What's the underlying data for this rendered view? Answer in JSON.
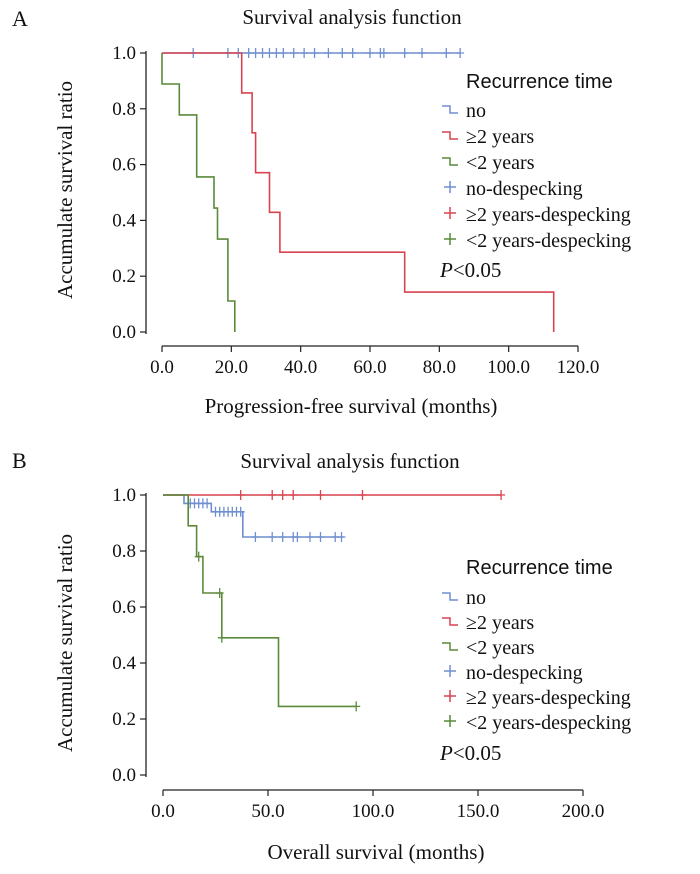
{
  "chart_data": [
    {
      "panel": "A",
      "type": "line",
      "step": true,
      "title": "Survival analysis function",
      "xlabel": "Progression-free survival (months)",
      "ylabel": "Accumulate survival ratio",
      "xlim": [
        0,
        120
      ],
      "ylim": [
        0,
        1
      ],
      "xticks": [
        "0.0",
        "20.0",
        "40.0",
        "60.0",
        "80.0",
        "100.0",
        "120.0"
      ],
      "yticks": [
        "0.0",
        "0.2",
        "0.4",
        "0.6",
        "0.8",
        "1.0"
      ],
      "legend_title": "Recurrence time",
      "legend": [
        "no",
        "≥2 years",
        "<2 years",
        "no-despecking",
        "≥2 years-despecking",
        "<2 years-despecking"
      ],
      "annotation": "P<0.05",
      "series": [
        {
          "name": "no",
          "color": "#6f8fd0",
          "steps": [
            [
              0,
              1.0
            ],
            [
              86,
              1.0
            ]
          ],
          "censored": [
            [
              9,
              1.0
            ],
            [
              19,
              1.0
            ],
            [
              22,
              1.0
            ],
            [
              25,
              1.0
            ],
            [
              27,
              1.0
            ],
            [
              29,
              1.0
            ],
            [
              31,
              1.0
            ],
            [
              33,
              1.0
            ],
            [
              35,
              1.0
            ],
            [
              38,
              1.0
            ],
            [
              41,
              1.0
            ],
            [
              44,
              1.0
            ],
            [
              48,
              1.0
            ],
            [
              52,
              1.0
            ],
            [
              55,
              1.0
            ],
            [
              60,
              1.0
            ],
            [
              63,
              1.0
            ],
            [
              64,
              1.0
            ],
            [
              70,
              1.0
            ],
            [
              75,
              1.0
            ],
            [
              82,
              1.0
            ],
            [
              86,
              1.0
            ]
          ]
        },
        {
          "name": "≥2 years",
          "color": "#d9434f",
          "steps": [
            [
              0,
              1.0
            ],
            [
              23,
              1.0
            ],
            [
              23,
              0.857
            ],
            [
              26,
              0.857
            ],
            [
              26,
              0.714
            ],
            [
              27,
              0.714
            ],
            [
              27,
              0.571
            ],
            [
              31,
              0.571
            ],
            [
              31,
              0.429
            ],
            [
              34,
              0.429
            ],
            [
              34,
              0.286
            ],
            [
              70,
              0.286
            ],
            [
              70,
              0.143
            ],
            [
              113,
              0.143
            ],
            [
              113,
              0.0
            ]
          ],
          "censored": []
        },
        {
          "name": "<2 years",
          "color": "#5a8a3a",
          "steps": [
            [
              0,
              1.0
            ],
            [
              0,
              0.889
            ],
            [
              5,
              0.889
            ],
            [
              5,
              0.778
            ],
            [
              10,
              0.778
            ],
            [
              10,
              0.556
            ],
            [
              15,
              0.556
            ],
            [
              15,
              0.444
            ],
            [
              16,
              0.444
            ],
            [
              16,
              0.333
            ],
            [
              19,
              0.333
            ],
            [
              19,
              0.111
            ],
            [
              21,
              0.111
            ],
            [
              21,
              0.0
            ]
          ],
          "censored": []
        }
      ]
    },
    {
      "panel": "B",
      "type": "line",
      "step": true,
      "title": "Survival analysis function",
      "xlabel": "Overall survival (months)",
      "ylabel": "Accumulate survival ratio",
      "xlim": [
        0,
        200
      ],
      "ylim": [
        0,
        1
      ],
      "xticks": [
        "0.0",
        "50.0",
        "100.0",
        "150.0",
        "200.0"
      ],
      "yticks": [
        "0.0",
        "0.2",
        "0.4",
        "0.6",
        "0.8",
        "1.0"
      ],
      "legend_title": "Recurrence time",
      "legend": [
        "no",
        "≥2 years",
        "<2 years",
        "no-despecking",
        "≥2 years-despecking",
        "<2 years-despecking"
      ],
      "annotation": "P<0.05",
      "series": [
        {
          "name": "no",
          "color": "#6f8fd0",
          "steps": [
            [
              0,
              1.0
            ],
            [
              10,
              1.0
            ],
            [
              10,
              0.97
            ],
            [
              23,
              0.97
            ],
            [
              23,
              0.94
            ],
            [
              38,
              0.94
            ],
            [
              38,
              0.85
            ],
            [
              86,
              0.85
            ]
          ],
          "censored": [
            [
              13,
              0.97
            ],
            [
              15,
              0.97
            ],
            [
              17,
              0.97
            ],
            [
              19,
              0.97
            ],
            [
              21,
              0.97
            ],
            [
              25,
              0.94
            ],
            [
              27,
              0.94
            ],
            [
              29,
              0.94
            ],
            [
              31,
              0.94
            ],
            [
              33,
              0.94
            ],
            [
              35,
              0.94
            ],
            [
              37,
              0.94
            ],
            [
              44,
              0.85
            ],
            [
              52,
              0.85
            ],
            [
              57,
              0.85
            ],
            [
              62,
              0.85
            ],
            [
              64,
              0.85
            ],
            [
              70,
              0.85
            ],
            [
              75,
              0.85
            ],
            [
              82,
              0.85
            ],
            [
              85,
              0.85
            ]
          ]
        },
        {
          "name": "≥2 years",
          "color": "#d9434f",
          "steps": [
            [
              0,
              1.0
            ],
            [
              161,
              1.0
            ]
          ],
          "censored": [
            [
              37,
              1.0
            ],
            [
              52,
              1.0
            ],
            [
              57,
              1.0
            ],
            [
              62,
              1.0
            ],
            [
              75,
              1.0
            ],
            [
              95,
              1.0
            ],
            [
              161,
              1.0
            ]
          ]
        },
        {
          "name": "<2 years",
          "color": "#5a8a3a",
          "steps": [
            [
              0,
              1.0
            ],
            [
              12,
              1.0
            ],
            [
              12,
              0.89
            ],
            [
              16,
              0.89
            ],
            [
              16,
              0.78
            ],
            [
              19,
              0.78
            ],
            [
              19,
              0.65
            ],
            [
              28,
              0.65
            ],
            [
              28,
              0.49
            ],
            [
              55,
              0.49
            ],
            [
              55,
              0.245
            ],
            [
              92,
              0.245
            ]
          ],
          "censored": [
            [
              17,
              0.78
            ],
            [
              27,
              0.65
            ],
            [
              28,
              0.49
            ],
            [
              92,
              0.245
            ]
          ]
        }
      ]
    }
  ]
}
